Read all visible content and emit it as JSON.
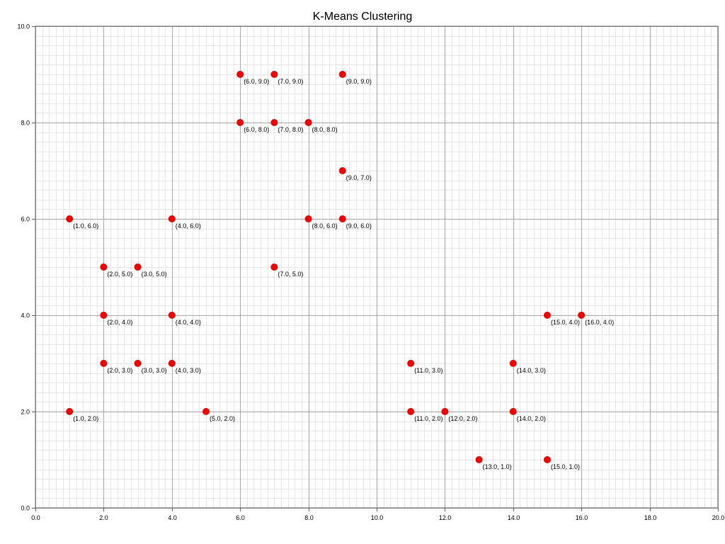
{
  "chart_data": {
    "type": "scatter",
    "title": "K-Means Clustering",
    "xlabel": "",
    "ylabel": "",
    "xlim": [
      0,
      20
    ],
    "ylim": [
      0,
      10
    ],
    "x_ticks": [
      "0.0",
      "2.0",
      "4.0",
      "6.0",
      "8.0",
      "10.0",
      "12.0",
      "14.0",
      "16.0",
      "18.0",
      "20.0"
    ],
    "y_ticks": [
      "0.0",
      "2.0",
      "4.0",
      "6.0",
      "8.0",
      "10.0"
    ],
    "grid": true,
    "point_color": "#ee0000",
    "points": [
      {
        "x": 6,
        "y": 9,
        "label": "(6.0, 9.0)"
      },
      {
        "x": 7,
        "y": 9,
        "label": "(7.0, 9.0)"
      },
      {
        "x": 9,
        "y": 9,
        "label": "(9.0, 9.0)"
      },
      {
        "x": 6,
        "y": 8,
        "label": "(6.0, 8.0)"
      },
      {
        "x": 7,
        "y": 8,
        "label": "(7.0, 8.0)"
      },
      {
        "x": 8,
        "y": 8,
        "label": "(8.0, 8.0)"
      },
      {
        "x": 9,
        "y": 7,
        "label": "(9.0, 7.0)"
      },
      {
        "x": 1,
        "y": 6,
        "label": "(1.0, 6.0)"
      },
      {
        "x": 4,
        "y": 6,
        "label": "(4.0, 6.0)"
      },
      {
        "x": 8,
        "y": 6,
        "label": "(8.0, 6.0)"
      },
      {
        "x": 9,
        "y": 6,
        "label": "(9.0, 6.0)"
      },
      {
        "x": 2,
        "y": 5,
        "label": "(2.0, 5.0)"
      },
      {
        "x": 3,
        "y": 5,
        "label": "(3.0, 5.0)"
      },
      {
        "x": 7,
        "y": 5,
        "label": "(7.0, 5.0)"
      },
      {
        "x": 2,
        "y": 4,
        "label": "(2.0, 4.0)"
      },
      {
        "x": 4,
        "y": 4,
        "label": "(4.0, 4.0)"
      },
      {
        "x": 15,
        "y": 4,
        "label": "(15.0, 4.0)"
      },
      {
        "x": 16,
        "y": 4,
        "label": "(16.0, 4.0)"
      },
      {
        "x": 2,
        "y": 3,
        "label": "(2.0, 3.0)"
      },
      {
        "x": 3,
        "y": 3,
        "label": "(3.0, 3.0)"
      },
      {
        "x": 4,
        "y": 3,
        "label": "(4.0, 3.0)"
      },
      {
        "x": 11,
        "y": 3,
        "label": "(11.0, 3.0)"
      },
      {
        "x": 14,
        "y": 3,
        "label": "(14.0, 3.0)"
      },
      {
        "x": 1,
        "y": 2,
        "label": "(1.0, 2.0)"
      },
      {
        "x": 5,
        "y": 2,
        "label": "(5.0, 2.0)"
      },
      {
        "x": 11,
        "y": 2,
        "label": "(11.0, 2.0)"
      },
      {
        "x": 12,
        "y": 2,
        "label": "(12.0, 2.0)"
      },
      {
        "x": 14,
        "y": 2,
        "label": "(14.0, 2.0)"
      },
      {
        "x": 13,
        "y": 1,
        "label": "(13.0, 1.0)"
      },
      {
        "x": 15,
        "y": 1,
        "label": "(15.0, 1.0)"
      }
    ]
  }
}
